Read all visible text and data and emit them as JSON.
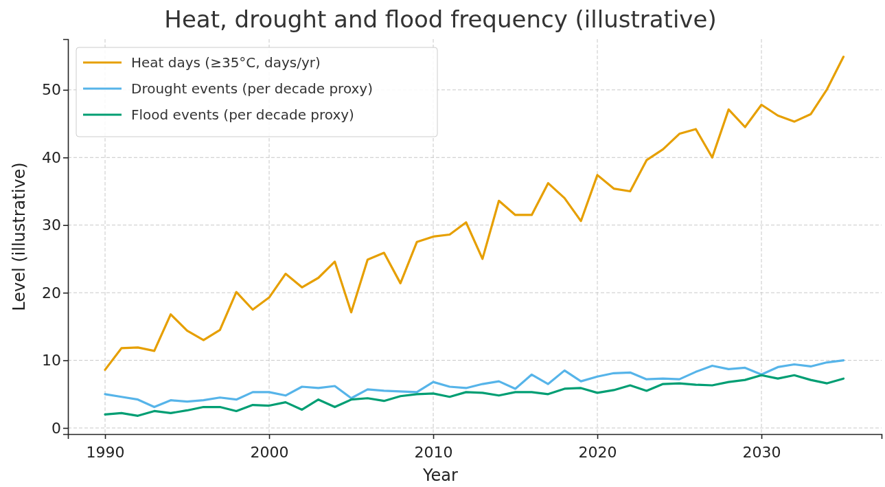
{
  "chart_data": {
    "type": "line",
    "title": "Heat, drought and flood frequency (illustrative)",
    "xlabel": "Year",
    "ylabel": "Level (illustrative)",
    "x": [
      1990,
      1991,
      1992,
      1993,
      1994,
      1995,
      1996,
      1997,
      1998,
      1999,
      2000,
      2001,
      2002,
      2003,
      2004,
      2005,
      2006,
      2007,
      2008,
      2009,
      2010,
      2011,
      2012,
      2013,
      2014,
      2015,
      2016,
      2017,
      2018,
      2019,
      2020,
      2021,
      2022,
      2023,
      2024,
      2025,
      2026,
      2027,
      2028,
      2029,
      2030,
      2031,
      2032,
      2033,
      2034,
      2035
    ],
    "series": [
      {
        "name": "Heat days (≥35°C, days/yr)",
        "color": "#e69f00",
        "values": [
          8.6,
          11.8,
          11.9,
          11.4,
          16.8,
          14.4,
          13.0,
          14.5,
          20.1,
          17.5,
          19.3,
          22.8,
          20.8,
          22.2,
          24.6,
          17.1,
          24.9,
          25.9,
          21.4,
          27.5,
          28.3,
          28.6,
          30.4,
          25.0,
          33.6,
          31.5,
          31.5,
          36.2,
          34.0,
          30.6,
          37.4,
          35.4,
          35.0,
          39.6,
          41.2,
          43.5,
          44.2,
          40.0,
          47.1,
          44.5,
          47.8,
          46.2,
          45.3,
          46.4,
          50.1,
          54.9
        ]
      },
      {
        "name": "Drought events (per decade proxy)",
        "color": "#56b4e9",
        "values": [
          5.0,
          4.6,
          4.2,
          3.1,
          4.1,
          3.9,
          4.1,
          4.5,
          4.2,
          5.3,
          5.3,
          4.8,
          6.1,
          5.9,
          6.2,
          4.4,
          5.7,
          5.5,
          5.4,
          5.3,
          6.8,
          6.1,
          5.9,
          6.5,
          6.9,
          5.8,
          7.9,
          6.5,
          8.5,
          6.9,
          7.6,
          8.1,
          8.2,
          7.2,
          7.3,
          7.2,
          8.3,
          9.2,
          8.7,
          8.9,
          7.9,
          9.0,
          9.4,
          9.1,
          9.7,
          10.0
        ]
      },
      {
        "name": "Flood events (per decade proxy)",
        "color": "#009e73",
        "values": [
          2.0,
          2.2,
          1.8,
          2.5,
          2.2,
          2.6,
          3.1,
          3.1,
          2.5,
          3.4,
          3.3,
          3.8,
          2.7,
          4.2,
          3.1,
          4.2,
          4.4,
          4.0,
          4.7,
          5.0,
          5.1,
          4.6,
          5.3,
          5.2,
          4.8,
          5.3,
          5.3,
          5.0,
          5.8,
          5.9,
          5.2,
          5.6,
          6.3,
          5.5,
          6.5,
          6.6,
          6.4,
          6.3,
          6.8,
          7.1,
          7.8,
          7.3,
          7.8,
          7.1,
          6.6,
          7.3
        ]
      }
    ],
    "xlim": [
      1987.74,
      2037.32
    ],
    "xticks": [
      1990,
      2000,
      2010,
      2020,
      2030
    ],
    "ylim": [
      -0.91,
      57.5
    ],
    "yticks": [
      0,
      10,
      20,
      30,
      40,
      50
    ],
    "grid": true,
    "legend": "top left",
    "line_style": "solid",
    "marker": "none"
  }
}
